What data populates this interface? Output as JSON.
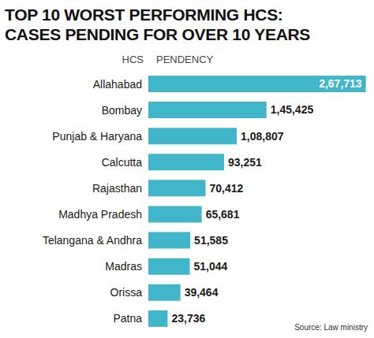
{
  "chart_data": {
    "type": "bar",
    "orientation": "horizontal",
    "title": "TOP 10 WORST PERFORMING HCS:",
    "subtitle": "CASES PENDING FOR OVER 10 YEARS",
    "y_label": "HCS",
    "x_label": "PENDENCY",
    "annotation": "Source: Law ministry",
    "categories": [
      "Allahabad",
      "Bombay",
      "Punjab & Haryana",
      "Calcutta",
      "Rajasthan",
      "Madhya Pradesh",
      "Telangana & Andhra",
      "Madras",
      "Orissa",
      "Patna"
    ],
    "values": [
      267713,
      145425,
      108807,
      93251,
      70412,
      65681,
      51585,
      51044,
      39464,
      23736
    ],
    "value_labels": [
      "2,67,713",
      "1,45,425",
      "1,08,807",
      "93,251",
      "70,412",
      "65,681",
      "51,585",
      "51,044",
      "39,464",
      "23,736"
    ],
    "data_labels": true,
    "color": "#41b6c8",
    "xlim": [
      0,
      270000
    ],
    "tick_labels": "y",
    "grid": false
  }
}
